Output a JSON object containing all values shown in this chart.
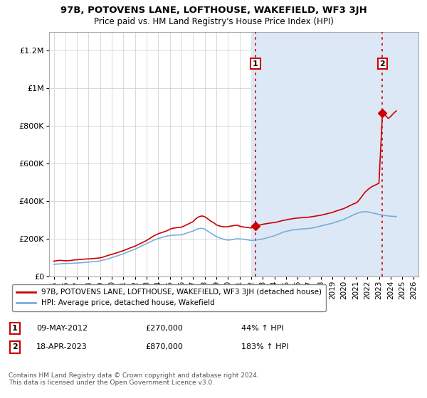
{
  "title": "97B, POTOVENS LANE, LOFTHOUSE, WAKEFIELD, WF3 3JH",
  "subtitle": "Price paid vs. HM Land Registry's House Price Index (HPI)",
  "ylim": [
    0,
    1300000
  ],
  "yticks": [
    0,
    200000,
    400000,
    600000,
    800000,
    1000000,
    1200000
  ],
  "ytick_labels": [
    "£0",
    "£200K",
    "£400K",
    "£600K",
    "£800K",
    "£1M",
    "£1.2M"
  ],
  "legend_label_red": "97B, POTOVENS LANE, LOFTHOUSE, WAKEFIELD, WF3 3JH (detached house)",
  "legend_label_blue": "HPI: Average price, detached house, Wakefield",
  "red_color": "#cc0000",
  "blue_color": "#7aaddc",
  "shade_color": "#dce8f5",
  "annotation1": {
    "label": "1",
    "date_str": "09-MAY-2012",
    "price_str": "£270,000",
    "pct_str": "44% ↑ HPI",
    "x_year": 2012.36,
    "y_val": 270000
  },
  "annotation2": {
    "label": "2",
    "date_str": "18-APR-2023",
    "price_str": "£870,000",
    "pct_str": "183% ↑ HPI",
    "x_year": 2023.3,
    "y_val": 870000
  },
  "footer": "Contains HM Land Registry data © Crown copyright and database right 2024.\nThis data is licensed under the Open Government Licence v3.0.",
  "shade_start": 2012.0,
  "hatch_start": 2024.0,
  "xmin": 1994.6,
  "xmax": 2026.4,
  "xticks": [
    1995,
    1996,
    1997,
    1998,
    1999,
    2000,
    2001,
    2002,
    2003,
    2004,
    2005,
    2006,
    2007,
    2008,
    2009,
    2010,
    2011,
    2012,
    2013,
    2014,
    2015,
    2016,
    2017,
    2018,
    2019,
    2020,
    2021,
    2022,
    2023,
    2024,
    2025,
    2026
  ],
  "red_x": [
    1995.0,
    1995.1,
    1995.2,
    1995.3,
    1995.4,
    1995.5,
    1995.6,
    1995.7,
    1995.8,
    1995.9,
    1996.0,
    1996.1,
    1996.2,
    1996.3,
    1996.4,
    1996.5,
    1996.6,
    1996.7,
    1996.8,
    1996.9,
    1997.0,
    1997.1,
    1997.2,
    1997.3,
    1997.4,
    1997.5,
    1997.6,
    1997.7,
    1997.8,
    1997.9,
    1998.0,
    1998.2,
    1998.4,
    1998.6,
    1998.8,
    1999.0,
    1999.2,
    1999.4,
    1999.6,
    1999.8,
    2000.0,
    2000.2,
    2000.4,
    2000.6,
    2000.8,
    2001.0,
    2001.2,
    2001.4,
    2001.6,
    2001.8,
    2002.0,
    2002.2,
    2002.4,
    2002.6,
    2002.8,
    2003.0,
    2003.2,
    2003.4,
    2003.6,
    2003.8,
    2004.0,
    2004.2,
    2004.4,
    2004.6,
    2004.8,
    2005.0,
    2005.2,
    2005.4,
    2005.6,
    2005.8,
    2006.0,
    2006.2,
    2006.4,
    2006.6,
    2006.8,
    2007.0,
    2007.2,
    2007.4,
    2007.6,
    2007.8,
    2008.0,
    2008.2,
    2008.4,
    2008.6,
    2008.8,
    2009.0,
    2009.2,
    2009.4,
    2009.6,
    2009.8,
    2010.0,
    2010.2,
    2010.4,
    2010.6,
    2010.8,
    2011.0,
    2011.2,
    2011.4,
    2011.6,
    2011.8,
    2012.0,
    2012.36,
    2012.5,
    2012.7,
    2012.9,
    2013.0,
    2013.2,
    2013.4,
    2013.6,
    2013.8,
    2014.0,
    2014.2,
    2014.4,
    2014.6,
    2014.8,
    2015.0,
    2015.2,
    2015.4,
    2015.6,
    2015.8,
    2016.0,
    2016.2,
    2016.4,
    2016.6,
    2016.8,
    2017.0,
    2017.2,
    2017.4,
    2017.6,
    2017.8,
    2018.0,
    2018.2,
    2018.4,
    2018.6,
    2018.8,
    2019.0,
    2019.2,
    2019.4,
    2019.6,
    2019.8,
    2020.0,
    2020.2,
    2020.4,
    2020.6,
    2020.8,
    2021.0,
    2021.2,
    2021.4,
    2021.6,
    2021.8,
    2022.0,
    2022.2,
    2022.4,
    2022.6,
    2022.8,
    2023.0,
    2023.3,
    2023.5,
    2023.8,
    2024.0,
    2024.3,
    2024.5
  ],
  "red_y": [
    82000,
    83000,
    84000,
    85000,
    85500,
    86000,
    86000,
    85500,
    85000,
    84500,
    84000,
    84000,
    84500,
    85000,
    85500,
    86000,
    87000,
    88000,
    88500,
    89000,
    89500,
    90000,
    90500,
    91000,
    91500,
    92000,
    92500,
    93000,
    93500,
    94000,
    94000,
    95000,
    96000,
    97000,
    98000,
    100000,
    103000,
    107000,
    111000,
    115000,
    118000,
    122000,
    126000,
    130000,
    134000,
    138000,
    143000,
    148000,
    153000,
    157000,
    162000,
    168000,
    174000,
    180000,
    186000,
    192000,
    200000,
    208000,
    216000,
    222000,
    228000,
    232000,
    236000,
    240000,
    245000,
    252000,
    256000,
    258000,
    260000,
    261000,
    263000,
    268000,
    274000,
    280000,
    286000,
    292000,
    305000,
    315000,
    320000,
    322000,
    318000,
    310000,
    300000,
    292000,
    285000,
    275000,
    270000,
    267000,
    265000,
    264000,
    265000,
    268000,
    270000,
    272000,
    273000,
    268000,
    265000,
    263000,
    261000,
    260000,
    258000,
    270000,
    272000,
    274000,
    276000,
    278000,
    280000,
    282000,
    284000,
    286000,
    287000,
    290000,
    293000,
    296000,
    299000,
    301000,
    304000,
    306000,
    308000,
    310000,
    311000,
    312000,
    313000,
    314000,
    315000,
    316000,
    318000,
    320000,
    322000,
    324000,
    326000,
    329000,
    332000,
    335000,
    338000,
    341000,
    346000,
    350000,
    354000,
    358000,
    362000,
    368000,
    374000,
    380000,
    386000,
    390000,
    400000,
    415000,
    432000,
    448000,
    460000,
    470000,
    478000,
    484000,
    490000,
    496000,
    870000,
    860000,
    840000,
    850000,
    870000,
    880000
  ],
  "blue_x": [
    1995.0,
    1995.2,
    1995.4,
    1995.6,
    1995.8,
    1996.0,
    1996.2,
    1996.4,
    1996.6,
    1996.8,
    1997.0,
    1997.2,
    1997.4,
    1997.6,
    1997.8,
    1998.0,
    1998.2,
    1998.4,
    1998.6,
    1998.8,
    1999.0,
    1999.2,
    1999.4,
    1999.6,
    1999.8,
    2000.0,
    2000.2,
    2000.4,
    2000.6,
    2000.8,
    2001.0,
    2001.2,
    2001.4,
    2001.6,
    2001.8,
    2002.0,
    2002.2,
    2002.4,
    2002.6,
    2002.8,
    2003.0,
    2003.2,
    2003.4,
    2003.6,
    2003.8,
    2004.0,
    2004.2,
    2004.4,
    2004.6,
    2004.8,
    2005.0,
    2005.2,
    2005.4,
    2005.6,
    2005.8,
    2006.0,
    2006.2,
    2006.4,
    2006.6,
    2006.8,
    2007.0,
    2007.2,
    2007.4,
    2007.6,
    2007.8,
    2008.0,
    2008.2,
    2008.4,
    2008.6,
    2008.8,
    2009.0,
    2009.2,
    2009.4,
    2009.6,
    2009.8,
    2010.0,
    2010.2,
    2010.4,
    2010.6,
    2010.8,
    2011.0,
    2011.2,
    2011.4,
    2011.6,
    2011.8,
    2012.0,
    2012.2,
    2012.4,
    2012.6,
    2012.8,
    2013.0,
    2013.2,
    2013.4,
    2013.6,
    2013.8,
    2014.0,
    2014.2,
    2014.4,
    2014.6,
    2014.8,
    2015.0,
    2015.2,
    2015.4,
    2015.6,
    2015.8,
    2016.0,
    2016.2,
    2016.4,
    2016.6,
    2016.8,
    2017.0,
    2017.2,
    2017.4,
    2017.6,
    2017.8,
    2018.0,
    2018.2,
    2018.4,
    2018.6,
    2018.8,
    2019.0,
    2019.2,
    2019.4,
    2019.6,
    2019.8,
    2020.0,
    2020.2,
    2020.4,
    2020.6,
    2020.8,
    2021.0,
    2021.2,
    2021.4,
    2021.6,
    2021.8,
    2022.0,
    2022.2,
    2022.4,
    2022.6,
    2022.8,
    2023.0,
    2023.2,
    2023.4,
    2023.6,
    2023.8,
    2024.0,
    2024.2,
    2024.5
  ],
  "blue_y": [
    65000,
    66000,
    67000,
    68000,
    69000,
    69500,
    70000,
    70500,
    71000,
    71500,
    72000,
    73000,
    74000,
    75000,
    76000,
    77000,
    78000,
    79000,
    80000,
    82000,
    84000,
    87000,
    90000,
    93000,
    97000,
    101000,
    105000,
    109000,
    113000,
    117000,
    121000,
    126000,
    131000,
    136000,
    141000,
    146000,
    152000,
    158000,
    164000,
    170000,
    175000,
    181000,
    187000,
    193000,
    198000,
    202000,
    206000,
    210000,
    213000,
    216000,
    218000,
    219000,
    220000,
    221000,
    221500,
    222000,
    226000,
    230000,
    234000,
    238000,
    242000,
    248000,
    254000,
    256000,
    256000,
    252000,
    244000,
    236000,
    228000,
    220000,
    213000,
    208000,
    203000,
    199000,
    196000,
    194000,
    195000,
    197000,
    199000,
    201000,
    200000,
    199000,
    198000,
    196000,
    194000,
    192000,
    193000,
    194000,
    196000,
    198000,
    200000,
    203000,
    207000,
    210000,
    213000,
    217000,
    222000,
    227000,
    232000,
    237000,
    240000,
    243000,
    246000,
    248000,
    250000,
    251000,
    252000,
    253000,
    254000,
    255000,
    256000,
    258000,
    260000,
    263000,
    266000,
    269000,
    272000,
    275000,
    278000,
    281000,
    284000,
    288000,
    292000,
    296000,
    300000,
    304000,
    310000,
    316000,
    322000,
    328000,
    333000,
    338000,
    342000,
    344000,
    345000,
    344000,
    342000,
    339000,
    336000,
    333000,
    330000,
    328000,
    326000,
    324000,
    322000,
    321000,
    320000,
    319000
  ]
}
